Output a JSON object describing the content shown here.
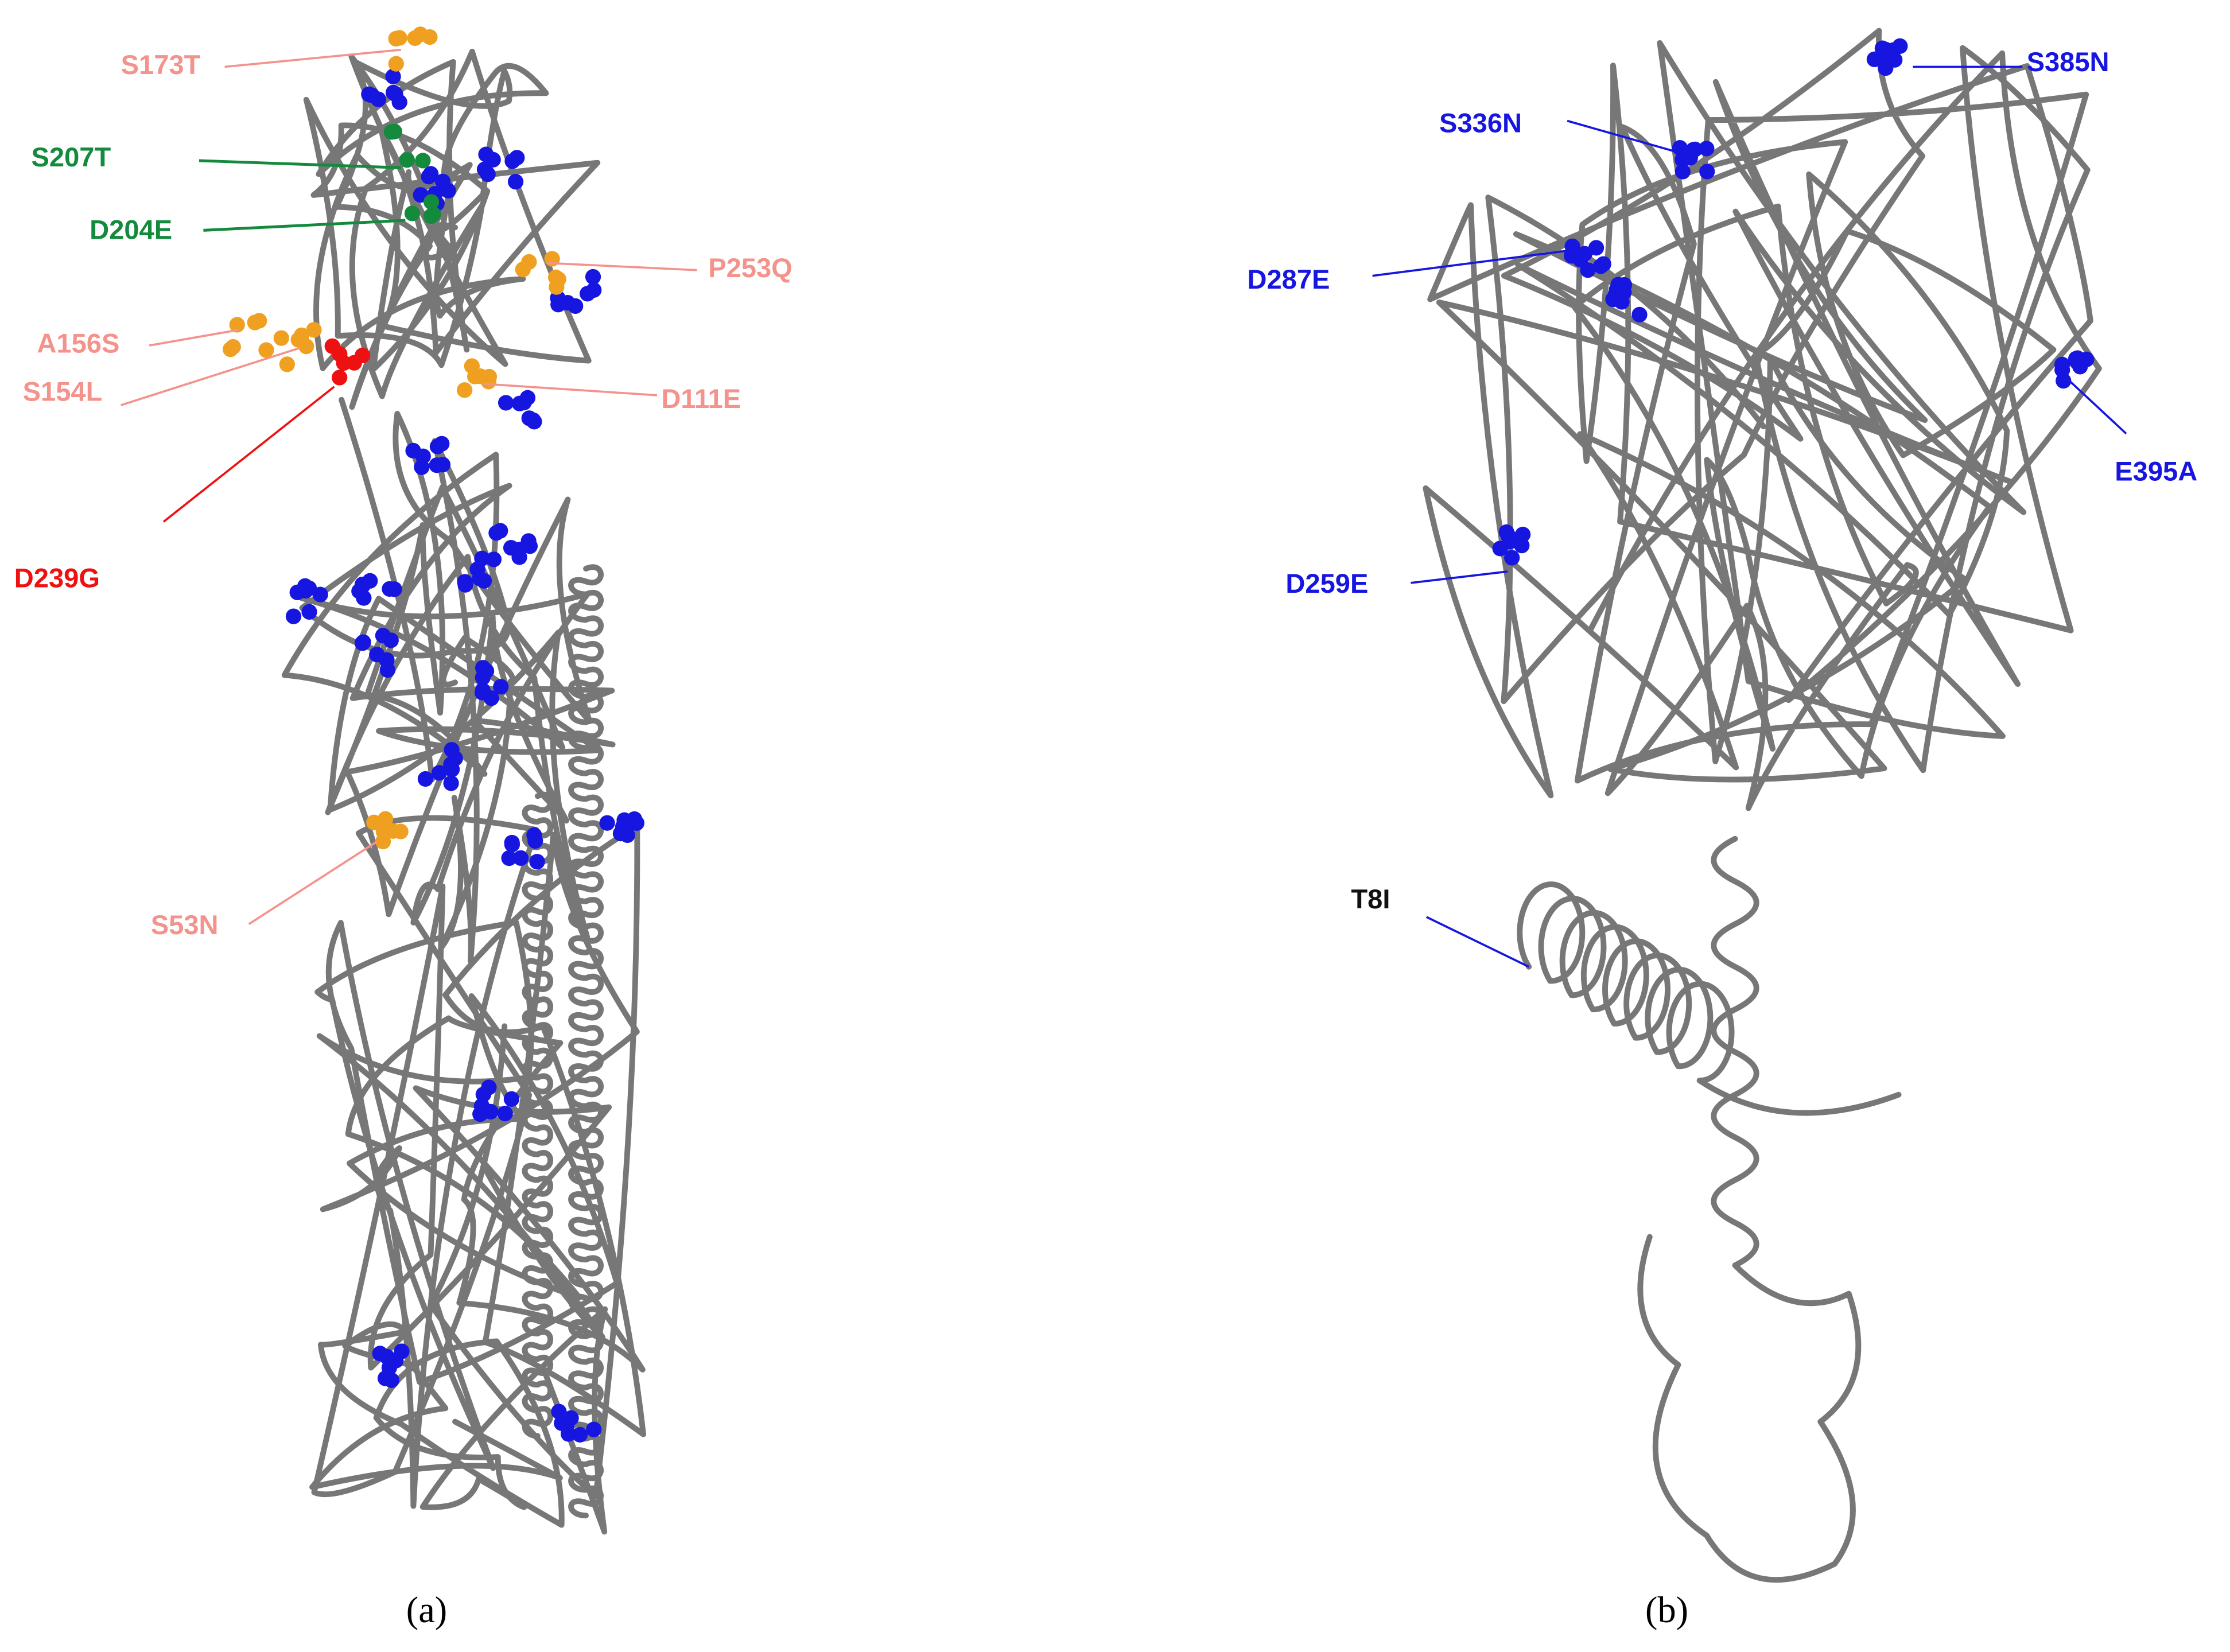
{
  "panels": [
    {
      "caption": "(a)",
      "labels": [
        "S173T",
        "S207T",
        "D204E",
        "P253Q",
        "A156S",
        "S154L",
        "D111E",
        "D239G",
        "S53N"
      ]
    },
    {
      "caption": "(b)",
      "labels": [
        "S385N",
        "S336N",
        "D287E",
        "E395A",
        "D259E",
        "T8I"
      ]
    }
  ]
}
